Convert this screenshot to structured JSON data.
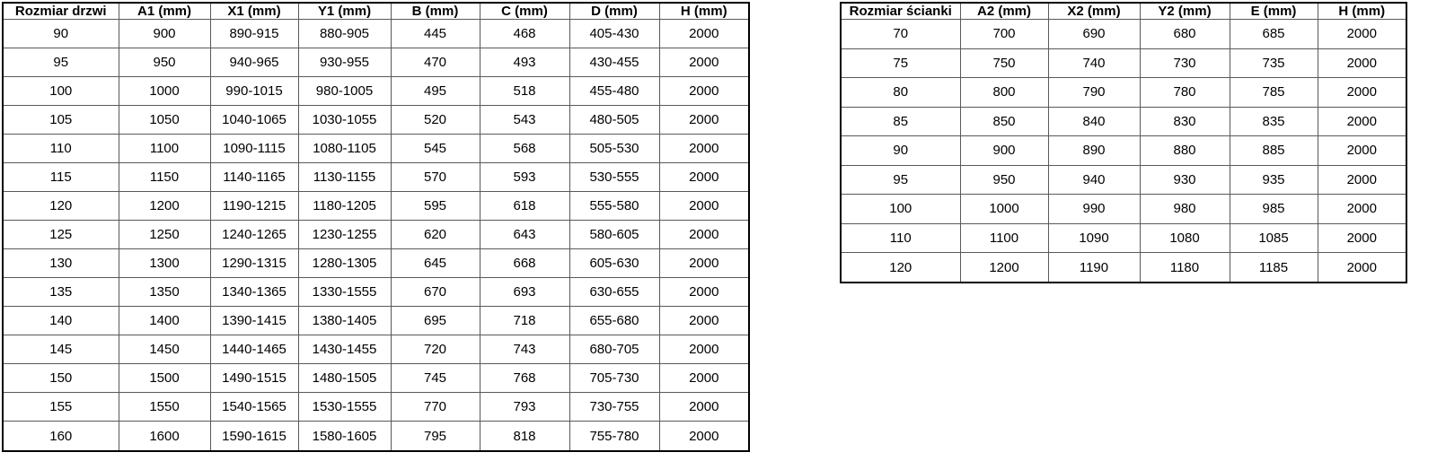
{
  "tables": [
    {
      "id": "door-table",
      "name": "door-size-table",
      "headers": [
        "Rozmiar drzwi",
        "A1 (mm)",
        "X1 (mm)",
        "Y1 (mm)",
        "B (mm)",
        "C (mm)",
        "D (mm)",
        "H (mm)"
      ],
      "rows": [
        [
          "90",
          "900",
          "890-915",
          "880-905",
          "445",
          "468",
          "405-430",
          "2000"
        ],
        [
          "95",
          "950",
          "940-965",
          "930-955",
          "470",
          "493",
          "430-455",
          "2000"
        ],
        [
          "100",
          "1000",
          "990-1015",
          "980-1005",
          "495",
          "518",
          "455-480",
          "2000"
        ],
        [
          "105",
          "1050",
          "1040-1065",
          "1030-1055",
          "520",
          "543",
          "480-505",
          "2000"
        ],
        [
          "110",
          "1100",
          "1090-1115",
          "1080-1105",
          "545",
          "568",
          "505-530",
          "2000"
        ],
        [
          "115",
          "1150",
          "1140-1165",
          "1130-1155",
          "570",
          "593",
          "530-555",
          "2000"
        ],
        [
          "120",
          "1200",
          "1190-1215",
          "1180-1205",
          "595",
          "618",
          "555-580",
          "2000"
        ],
        [
          "125",
          "1250",
          "1240-1265",
          "1230-1255",
          "620",
          "643",
          "580-605",
          "2000"
        ],
        [
          "130",
          "1300",
          "1290-1315",
          "1280-1305",
          "645",
          "668",
          "605-630",
          "2000"
        ],
        [
          "135",
          "1350",
          "1340-1365",
          "1330-1555",
          "670",
          "693",
          "630-655",
          "2000"
        ],
        [
          "140",
          "1400",
          "1390-1415",
          "1380-1405",
          "695",
          "718",
          "655-680",
          "2000"
        ],
        [
          "145",
          "1450",
          "1440-1465",
          "1430-1455",
          "720",
          "743",
          "680-705",
          "2000"
        ],
        [
          "150",
          "1500",
          "1490-1515",
          "1480-1505",
          "745",
          "768",
          "705-730",
          "2000"
        ],
        [
          "155",
          "1550",
          "1540-1565",
          "1530-1555",
          "770",
          "793",
          "730-755",
          "2000"
        ],
        [
          "160",
          "1600",
          "1590-1615",
          "1580-1605",
          "795",
          "818",
          "755-780",
          "2000"
        ]
      ]
    },
    {
      "id": "wall-table",
      "name": "wall-size-table",
      "headers": [
        "Rozmiar ścianki",
        "A2 (mm)",
        "X2 (mm)",
        "Y2 (mm)",
        "E (mm)",
        "H (mm)"
      ],
      "rows": [
        [
          "70",
          "700",
          "690",
          "680",
          "685",
          "2000"
        ],
        [
          "75",
          "750",
          "740",
          "730",
          "735",
          "2000"
        ],
        [
          "80",
          "800",
          "790",
          "780",
          "785",
          "2000"
        ],
        [
          "85",
          "850",
          "840",
          "830",
          "835",
          "2000"
        ],
        [
          "90",
          "900",
          "890",
          "880",
          "885",
          "2000"
        ],
        [
          "95",
          "950",
          "940",
          "930",
          "935",
          "2000"
        ],
        [
          "100",
          "1000",
          "990",
          "980",
          "985",
          "2000"
        ],
        [
          "110",
          "1100",
          "1090",
          "1080",
          "1085",
          "2000"
        ],
        [
          "120",
          "1200",
          "1190",
          "1180",
          "1185",
          "2000"
        ]
      ]
    }
  ],
  "colors": {
    "background": "#ffffff",
    "border_outer": "#000000",
    "border_inner": "#595959",
    "text": "#000000"
  }
}
